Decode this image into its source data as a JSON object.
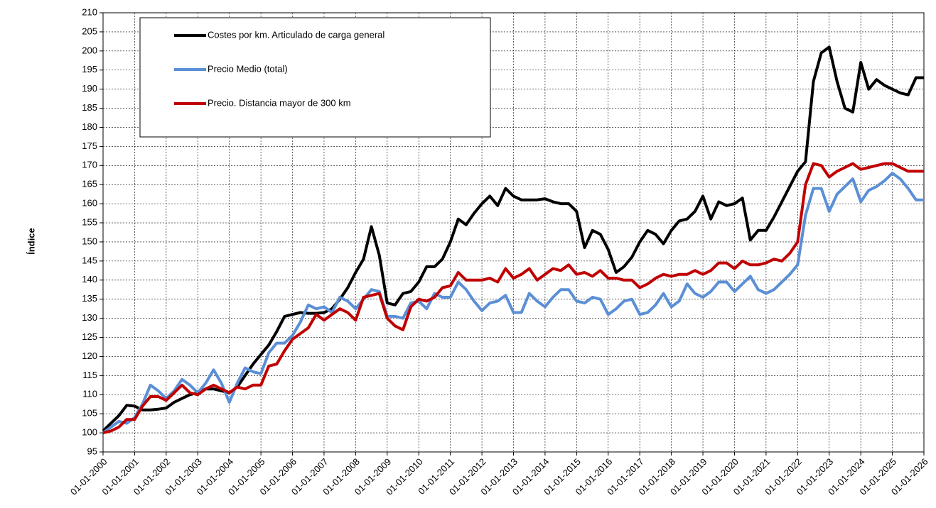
{
  "chart_data": {
    "type": "line",
    "y_label": "Índice",
    "x": [
      2000,
      2000.25,
      2000.5,
      2000.75,
      2001,
      2001.25,
      2001.5,
      2001.75,
      2002,
      2002.25,
      2002.5,
      2002.75,
      2003,
      2003.25,
      2003.5,
      2003.75,
      2004,
      2004.25,
      2004.5,
      2004.75,
      2005,
      2005.25,
      2005.5,
      2005.75,
      2006,
      2006.25,
      2006.5,
      2006.75,
      2007,
      2007.25,
      2007.5,
      2007.75,
      2008,
      2008.25,
      2008.5,
      2008.75,
      2009,
      2009.25,
      2009.5,
      2009.75,
      2010,
      2010.25,
      2010.5,
      2010.75,
      2011,
      2011.25,
      2011.5,
      2011.75,
      2012,
      2012.25,
      2012.5,
      2012.75,
      2013,
      2013.25,
      2013.5,
      2013.75,
      2014,
      2014.25,
      2014.5,
      2014.75,
      2015,
      2015.25,
      2015.5,
      2015.75,
      2016,
      2016.25,
      2016.5,
      2016.75,
      2017,
      2017.25,
      2017.5,
      2017.75,
      2018,
      2018.25,
      2018.5,
      2018.75,
      2019,
      2019.25,
      2019.5,
      2019.75,
      2020,
      2020.25,
      2020.5,
      2020.75,
      2021,
      2021.25,
      2021.5,
      2021.75,
      2022,
      2022.25,
      2022.5,
      2022.75,
      2023,
      2023.25,
      2023.5,
      2023.75,
      2024,
      2024.25,
      2024.5,
      2024.75,
      2025,
      2025.25,
      2025.5,
      2025.75,
      2026
    ],
    "series": [
      {
        "name": "Costes por km. Articulado de carga general",
        "color": "#000000",
        "values": [
          100.5,
          102.5,
          104.5,
          107.2,
          107,
          106,
          106,
          106.2,
          106.5,
          108,
          109,
          110,
          110.5,
          111.5,
          111.5,
          111,
          110.5,
          112,
          115,
          118,
          120.5,
          123,
          126.5,
          130.5,
          131,
          131.5,
          131.3,
          131.3,
          131.5,
          132.5,
          135,
          138,
          142,
          145.5,
          154,
          146.5,
          134,
          133.5,
          136.5,
          137,
          139.5,
          143.5,
          143.5,
          145.5,
          150,
          156,
          154.5,
          157.5,
          160,
          162,
          159.5,
          164,
          162,
          161,
          161,
          161,
          161.3,
          160.5,
          160,
          160,
          158,
          148.5,
          153,
          152,
          148,
          142,
          143.5,
          146,
          150,
          153,
          152,
          149.5,
          153,
          155.5,
          156,
          158,
          162,
          156,
          160.5,
          159.5,
          160,
          161.5,
          150.5,
          153,
          153,
          156.5,
          160.5,
          164.5,
          168.5,
          171,
          192,
          199.5,
          201,
          192,
          185,
          184,
          197,
          190,
          192.5,
          191,
          190,
          189,
          188.5,
          193,
          193
        ]
      },
      {
        "name": "Precio Medio (total)",
        "color": "#5b8fd6",
        "values": [
          100,
          101.5,
          103,
          102.5,
          104,
          107.5,
          112.5,
          111,
          109,
          111,
          114,
          112.5,
          110.5,
          113,
          116.5,
          113,
          108,
          113,
          117,
          116,
          115.5,
          121,
          123.5,
          123.5,
          125.5,
          129,
          133.5,
          132.5,
          133,
          131.5,
          135.5,
          134.5,
          132.5,
          135,
          137.5,
          137,
          130.5,
          130.5,
          130,
          134,
          134.5,
          132.5,
          136.5,
          135.5,
          135.5,
          139.5,
          137.5,
          134.5,
          132,
          134,
          134.5,
          136,
          131.5,
          131.5,
          136.5,
          134.5,
          133,
          135.5,
          137.5,
          137.5,
          134.5,
          134,
          135.5,
          135,
          131,
          132.5,
          134.5,
          135,
          131,
          131.5,
          133.5,
          136.5,
          133,
          134.5,
          139,
          136.5,
          135.5,
          137,
          139.5,
          139.5,
          137,
          139,
          141,
          137.5,
          136.5,
          137.5,
          139.5,
          141.5,
          144,
          157,
          164,
          164,
          158,
          162.5,
          164.5,
          166.5,
          160.5,
          163.5,
          164.5,
          166,
          168,
          166.5,
          164,
          161,
          161
        ]
      },
      {
        "name": "Precio. Distancia mayor de 300 km",
        "color": "#c00000",
        "values": [
          100,
          100.5,
          101.5,
          103.5,
          103.5,
          107,
          109.5,
          109.5,
          108.5,
          110.5,
          112.5,
          110.5,
          110,
          111.5,
          112.5,
          111.5,
          110.5,
          112,
          111.5,
          112.5,
          112.5,
          117.5,
          118,
          121.5,
          124.5,
          126,
          127.5,
          131,
          129.5,
          131,
          132.5,
          131.5,
          129.5,
          135.5,
          136,
          136.5,
          130,
          128,
          127,
          133,
          135,
          134.5,
          135.5,
          138,
          138.5,
          142,
          140,
          140,
          140,
          140.5,
          139.5,
          143,
          140.5,
          141.5,
          143,
          140,
          141.5,
          143,
          142.5,
          144,
          141.5,
          142,
          141,
          142.5,
          140.5,
          140.5,
          140,
          140,
          138,
          139,
          140.5,
          141.5,
          141,
          141.5,
          141.5,
          142.5,
          141.5,
          142.5,
          144.5,
          144.5,
          143,
          145,
          144,
          144,
          144.5,
          145.5,
          145,
          147,
          150,
          165,
          170.5,
          170,
          167,
          168.5,
          169.5,
          170.5,
          169,
          169.5,
          170,
          170.5,
          170.5,
          169.5,
          168.5,
          168.5,
          168.5
        ]
      }
    ],
    "xlim": [
      2000,
      2026
    ],
    "xticks": [
      {
        "value": 2000,
        "label": "01-01-2000"
      },
      {
        "value": 2001,
        "label": "01-01-2001"
      },
      {
        "value": 2002,
        "label": "01-01-2002"
      },
      {
        "value": 2003,
        "label": "01-01-2003"
      },
      {
        "value": 2004,
        "label": "01-01-2004"
      },
      {
        "value": 2005,
        "label": "01-01-2005"
      },
      {
        "value": 2006,
        "label": "01-01-2006"
      },
      {
        "value": 2007,
        "label": "01-01-2007"
      },
      {
        "value": 2008,
        "label": "01-01-2008"
      },
      {
        "value": 2009,
        "label": "01-01-2009"
      },
      {
        "value": 2010,
        "label": "01-01-2010"
      },
      {
        "value": 2011,
        "label": "01-01-2011"
      },
      {
        "value": 2012,
        "label": "01-01-2012"
      },
      {
        "value": 2013,
        "label": "01-01-2013"
      },
      {
        "value": 2014,
        "label": "01-01-2014"
      },
      {
        "value": 2015,
        "label": "01-01-2015"
      },
      {
        "value": 2016,
        "label": "01-01-2016"
      },
      {
        "value": 2017,
        "label": "01-01-2017"
      },
      {
        "value": 2018,
        "label": "01-01-2018"
      },
      {
        "value": 2019,
        "label": "01-01-2019"
      },
      {
        "value": 2020,
        "label": "01-01-2020"
      },
      {
        "value": 2021,
        "label": "01-01-2021"
      },
      {
        "value": 2022,
        "label": "01-01-2022"
      },
      {
        "value": 2023,
        "label": "01-01-2023"
      },
      {
        "value": 2024,
        "label": "01-01-2024"
      },
      {
        "value": 2025,
        "label": "01-01-2025"
      },
      {
        "value": 2026,
        "label": "01-01-2026"
      }
    ],
    "ylim": [
      95,
      210
    ],
    "yticks": [
      95,
      100,
      105,
      110,
      115,
      120,
      125,
      130,
      135,
      140,
      145,
      150,
      155,
      160,
      165,
      170,
      175,
      180,
      185,
      190,
      195,
      200,
      205,
      210
    ],
    "grid": true,
    "legend": "upper left"
  }
}
